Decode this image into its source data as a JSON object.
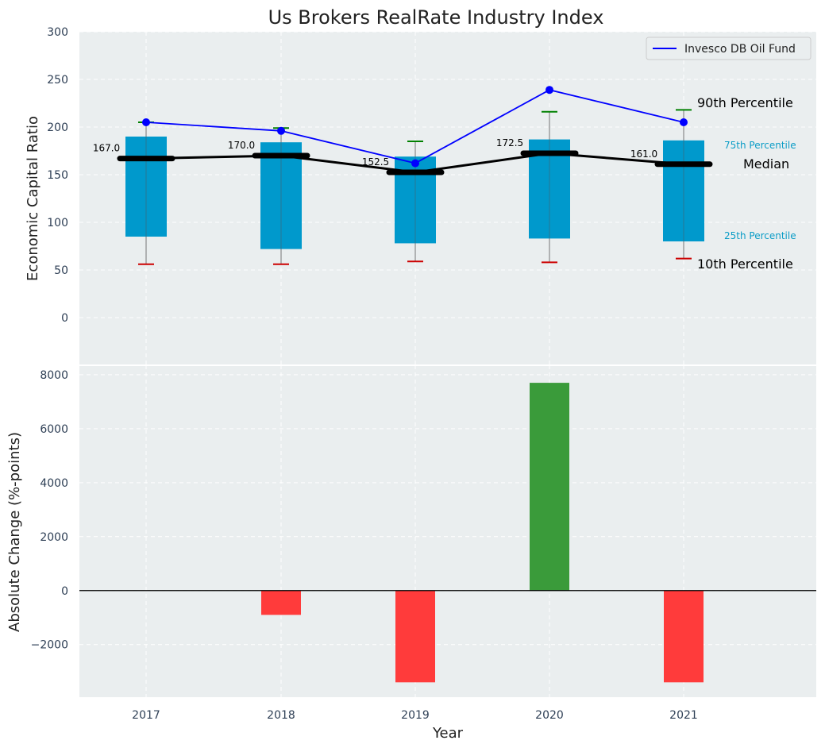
{
  "chart_data": [
    {
      "type": "bar",
      "title": "Us Brokers RealRate Industry Index",
      "ylabel": "Economic Capital Ratio",
      "ylim": [
        -50,
        300
      ],
      "yticks": [
        0,
        50,
        100,
        150,
        200,
        250,
        300
      ],
      "categories": [
        "2017",
        "2018",
        "2019",
        "2020",
        "2021"
      ],
      "grid": true,
      "legend_position": "top-right",
      "box": {
        "p10": [
          56,
          56,
          59,
          58,
          62
        ],
        "p25": [
          85,
          72,
          78,
          83,
          80
        ],
        "median": [
          167.0,
          170.0,
          152.5,
          172.5,
          161.0
        ],
        "p75": [
          190,
          184,
          169,
          187,
          186
        ],
        "p90": [
          205,
          199,
          185,
          216,
          218
        ]
      },
      "median_labels": [
        "167.0",
        "170.0",
        "152.5",
        "172.5",
        "161.0"
      ],
      "series": [
        {
          "name": "Invesco DB Oil Fund",
          "values": [
            205,
            196,
            162,
            239,
            205
          ]
        }
      ],
      "annotations": {
        "p90": "90th Percentile",
        "p75": "75th Percentile",
        "median": "Median",
        "p25": "25th Percentile",
        "p10": "10th Percentile"
      }
    },
    {
      "type": "bar",
      "ylabel": "Absolute Change (%-points)",
      "xlabel": "Year",
      "ylim": [
        -3950,
        8350
      ],
      "yticks": [
        -2000,
        0,
        2000,
        4000,
        6000,
        8000
      ],
      "ytick_labels": [
        "−2000",
        "0",
        "2000",
        "4000",
        "6000",
        "8000"
      ],
      "categories": [
        "2017",
        "2018",
        "2019",
        "2020",
        "2021"
      ],
      "values": [
        0,
        -900,
        -3400,
        7700,
        -3400
      ],
      "grid": true
    }
  ],
  "colors": {
    "panel_bg": "#eaeeef",
    "box": "#0099cc",
    "median": "#000000",
    "oil_line": "#0000ff",
    "whisker_high": "#008000",
    "whisker_low": "#cc0000",
    "positive": "#3a9b3a",
    "negative": "#ff3b3b",
    "annot_small": "#0a9cc6"
  }
}
